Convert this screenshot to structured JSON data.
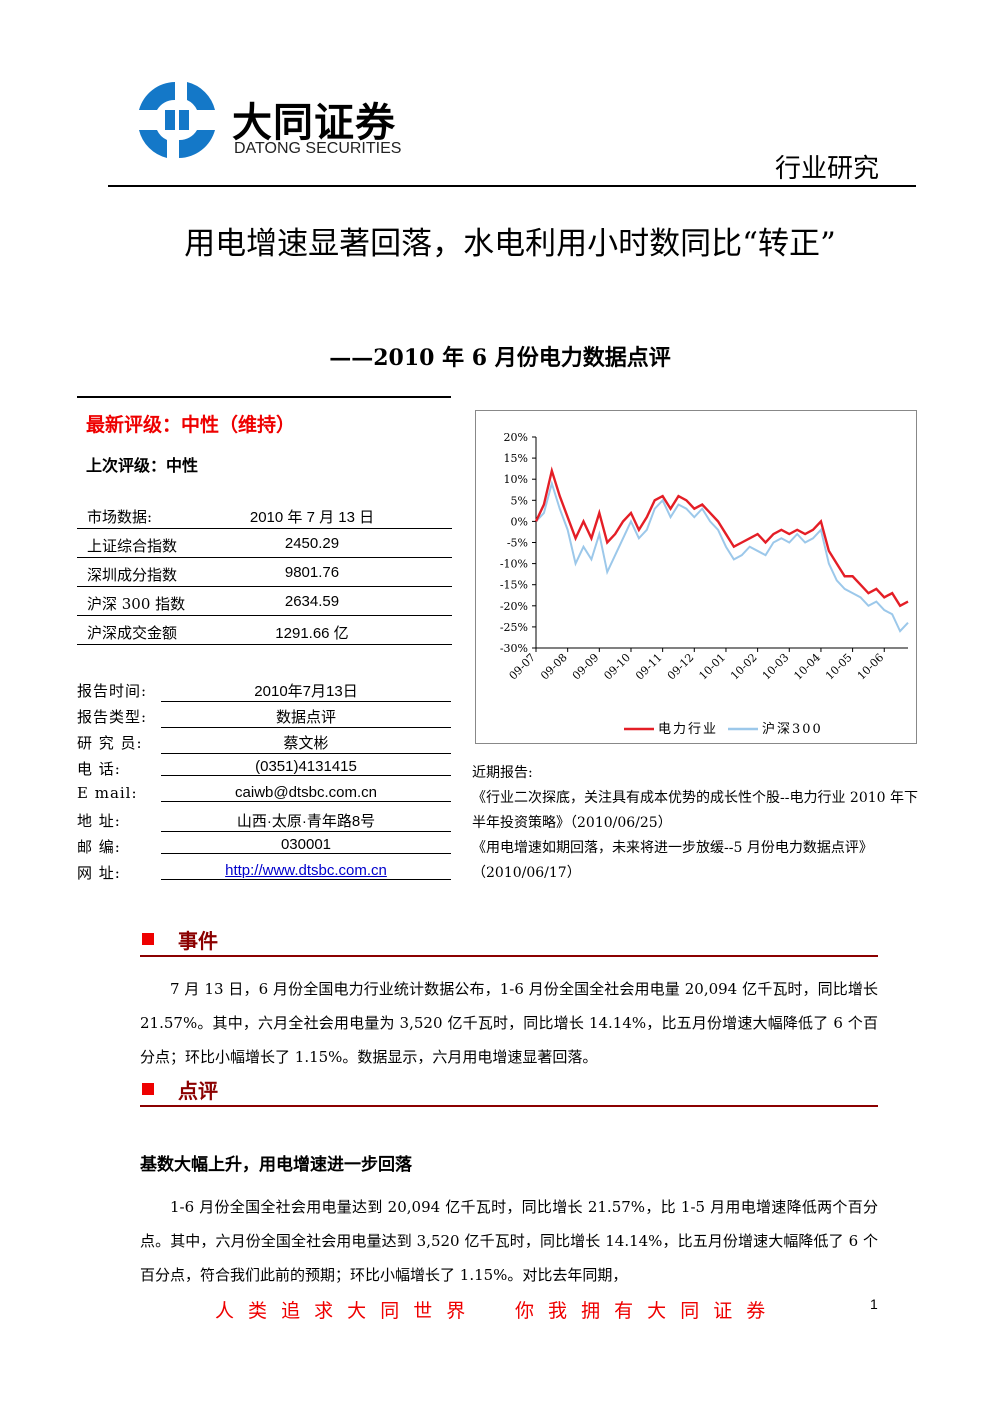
{
  "header": {
    "logo_cn": "大同证券",
    "logo_en": "DATONG SECURITIES",
    "category": "行业研究"
  },
  "title": "用电增速显著回落，水电利用小时数同比“转正”",
  "subtitle": "——2010 年 6 月份电力数据点评",
  "rating": {
    "current": "最新评级：中性（维持）",
    "previous": "上次评级：中性"
  },
  "market_table": {
    "rows": [
      [
        "市场数据:",
        "2010 年 7 月 13 日"
      ],
      [
        "上证综合指数",
        "2450.29"
      ],
      [
        "深圳成分指数",
        "9801.76"
      ],
      [
        "沪深 300 指数",
        "2634.59"
      ],
      [
        "沪深成交金额",
        "1291.66 亿"
      ]
    ]
  },
  "info": [
    [
      "报告时间:",
      "2010年7月13日"
    ],
    [
      "报告类型:",
      "数据点评"
    ],
    [
      "研 究 员:",
      "蔡文彬"
    ],
    [
      "电 话:",
      "(0351)4131415"
    ],
    [
      "E mail:",
      "caiwb@dtsbc.com.cn"
    ],
    [
      "地 址:",
      "山西·太原·青年路8号"
    ],
    [
      "邮 编:",
      "030001"
    ],
    [
      "网 址:",
      "http://www.dtsbc.com.cn"
    ]
  ],
  "recent_reports": {
    "label": "近期报告:",
    "items": [
      "《行业二次探底，关注具有成本优势的成长性个股--电力行业 2010 年下半年投资策略》（2010/06/25）",
      "《用电增速如期回落，未来将进一步放缓--5 月份电力数据点评》（2010/06/17）"
    ]
  },
  "sections": [
    {
      "heading": "事件",
      "paragraphs": [
        "7 月 13 日，6 月份全国电力行业统计数据公布，1-6 月份全国全社会用电量 20,094 亿千瓦时，同比增长 21.57%。其中，六月全社会用电量为 3,520 亿千瓦时，同比增长 14.14%，比五月份增速大幅降低了 6 个百分点；环比小幅增长了 1.15%。数据显示，六月用电增速显著回落。"
      ]
    },
    {
      "heading": "点评",
      "subheading": "基数大幅上升，用电增速进一步回落",
      "paragraphs": [
        "1-6 月份全国全社会用电量达到 20,094 亿千瓦时，同比增长 21.57%，比 1-5 月用电增速降低两个百分点。其中，六月份全国全社会用电量达到 3,520 亿千瓦时，同比增长 14.14%，比五月份增速大幅降低了 6 个百分点，符合我们此前的预期；环比小幅增长了 1.15%。对比去年同期，"
      ]
    }
  ],
  "footer": {
    "slogan_left": "人 类 追 求 大 同 世 界",
    "slogan_right": "你 我 拥 有 大 同 证 券",
    "page": "1"
  },
  "chart_data": {
    "type": "line",
    "categories": [
      "09-07",
      null,
      null,
      null,
      "09-08",
      null,
      null,
      null,
      "09-09",
      null,
      null,
      null,
      "09-10",
      null,
      null,
      null,
      "09-11",
      null,
      null,
      null,
      "09-12",
      null,
      null,
      null,
      "10-01",
      null,
      null,
      null,
      "10-02",
      null,
      null,
      null,
      "10-03",
      null,
      null,
      null,
      "10-04",
      null,
      null,
      null,
      "10-05",
      null,
      null,
      null,
      "10-06",
      null,
      null,
      null
    ],
    "series": [
      {
        "name": "电力行业",
        "color": "#e41e26",
        "values": [
          0,
          4,
          12,
          6,
          1,
          -4,
          0,
          -4,
          2,
          -5,
          -3,
          0,
          2,
          -2,
          1,
          5,
          6,
          3,
          6,
          5,
          3,
          4,
          2,
          0,
          -3,
          -6,
          -5,
          -4,
          -3,
          -5,
          -3,
          -2,
          -3,
          -2,
          -3,
          -2,
          0,
          -7,
          -10,
          -13,
          -13,
          -15,
          -17,
          -16,
          -18,
          -17,
          -20,
          -19
        ]
      },
      {
        "name": "沪深300",
        "color": "#9cc8ea",
        "values": [
          0,
          2,
          9,
          3,
          -2,
          -10,
          -6,
          -9,
          -3,
          -12,
          -8,
          -4,
          0,
          -4,
          -2,
          3,
          5,
          1,
          4,
          3,
          1,
          3,
          0,
          -2,
          -6,
          -9,
          -8,
          -6,
          -7,
          -8,
          -5,
          -4,
          -5,
          -3,
          -5,
          -4,
          -2,
          -10,
          -14,
          -16,
          -17,
          -18,
          -20,
          -19,
          -21,
          -22,
          -26,
          -24
        ]
      }
    ],
    "ylim": [
      -30,
      20
    ],
    "yticks": [
      {
        "value": 20,
        "label": "20%"
      },
      {
        "value": 15,
        "label": "15%"
      },
      {
        "value": 10,
        "label": "10%"
      },
      {
        "value": 5,
        "label": "5%"
      },
      {
        "value": 0,
        "label": "0%"
      },
      {
        "value": -5,
        "label": "-5%"
      },
      {
        "value": -10,
        "label": "-10%"
      },
      {
        "value": -15,
        "label": "-15%"
      },
      {
        "value": -20,
        "label": "-20%"
      },
      {
        "value": -25,
        "label": "-25%"
      },
      {
        "value": -30,
        "label": "-30%"
      }
    ],
    "legend": "bottom"
  }
}
